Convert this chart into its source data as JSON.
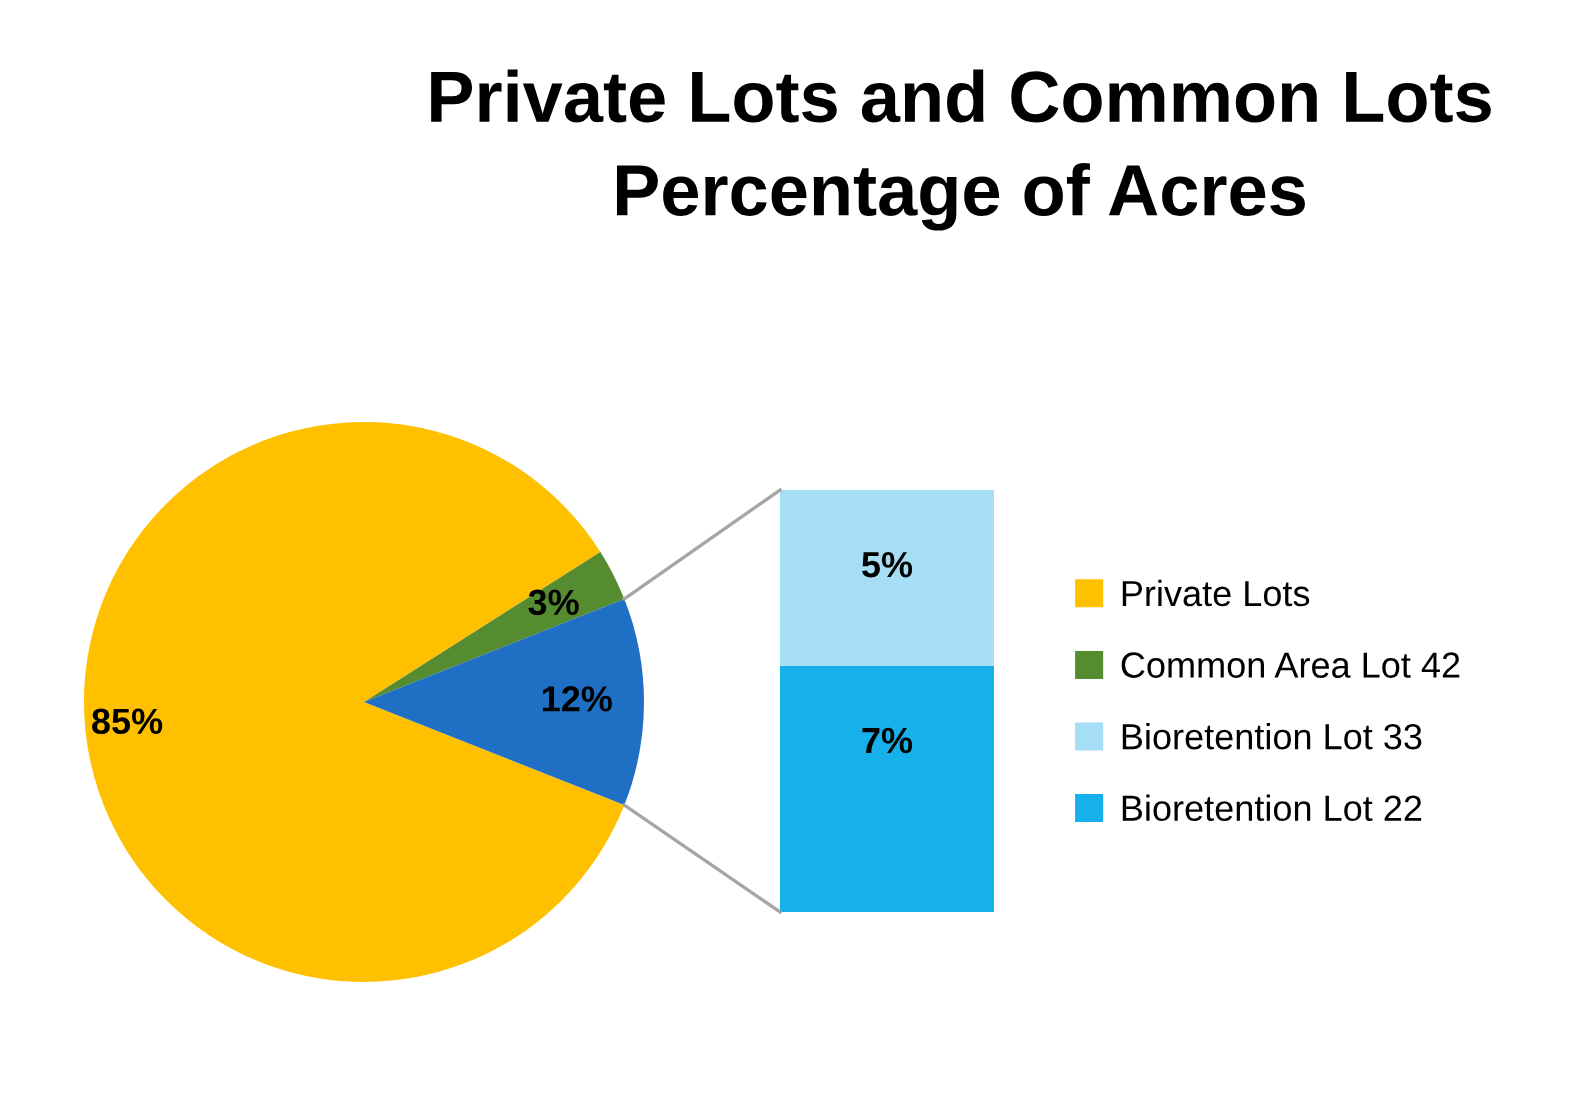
{
  "chart_data": [
    {
      "type": "pie",
      "title": "Private Lots and Common Lots\nPercentage of Acres",
      "categories": [
        "Private Lots",
        "Common Area Lot 42",
        null
      ],
      "values": [
        85,
        3,
        12
      ],
      "colors": [
        "#ffc000",
        "#548c2f",
        "#1f6fc5"
      ],
      "value_labels": [
        "85%",
        "3%",
        "12%"
      ],
      "legend": "right"
    },
    {
      "type": "bar",
      "stacked": true,
      "legend": "right",
      "categories": [
        null
      ],
      "series": [
        {
          "name": "Bioretention Lot 22",
          "color": "#16b0ea",
          "values": [
            7
          ],
          "value_labels": [
            "7%"
          ]
        },
        {
          "name": "Bioretention Lot 33",
          "color": "#a6def5",
          "values": [
            5
          ],
          "value_labels": [
            "5%"
          ]
        }
      ]
    }
  ]
}
